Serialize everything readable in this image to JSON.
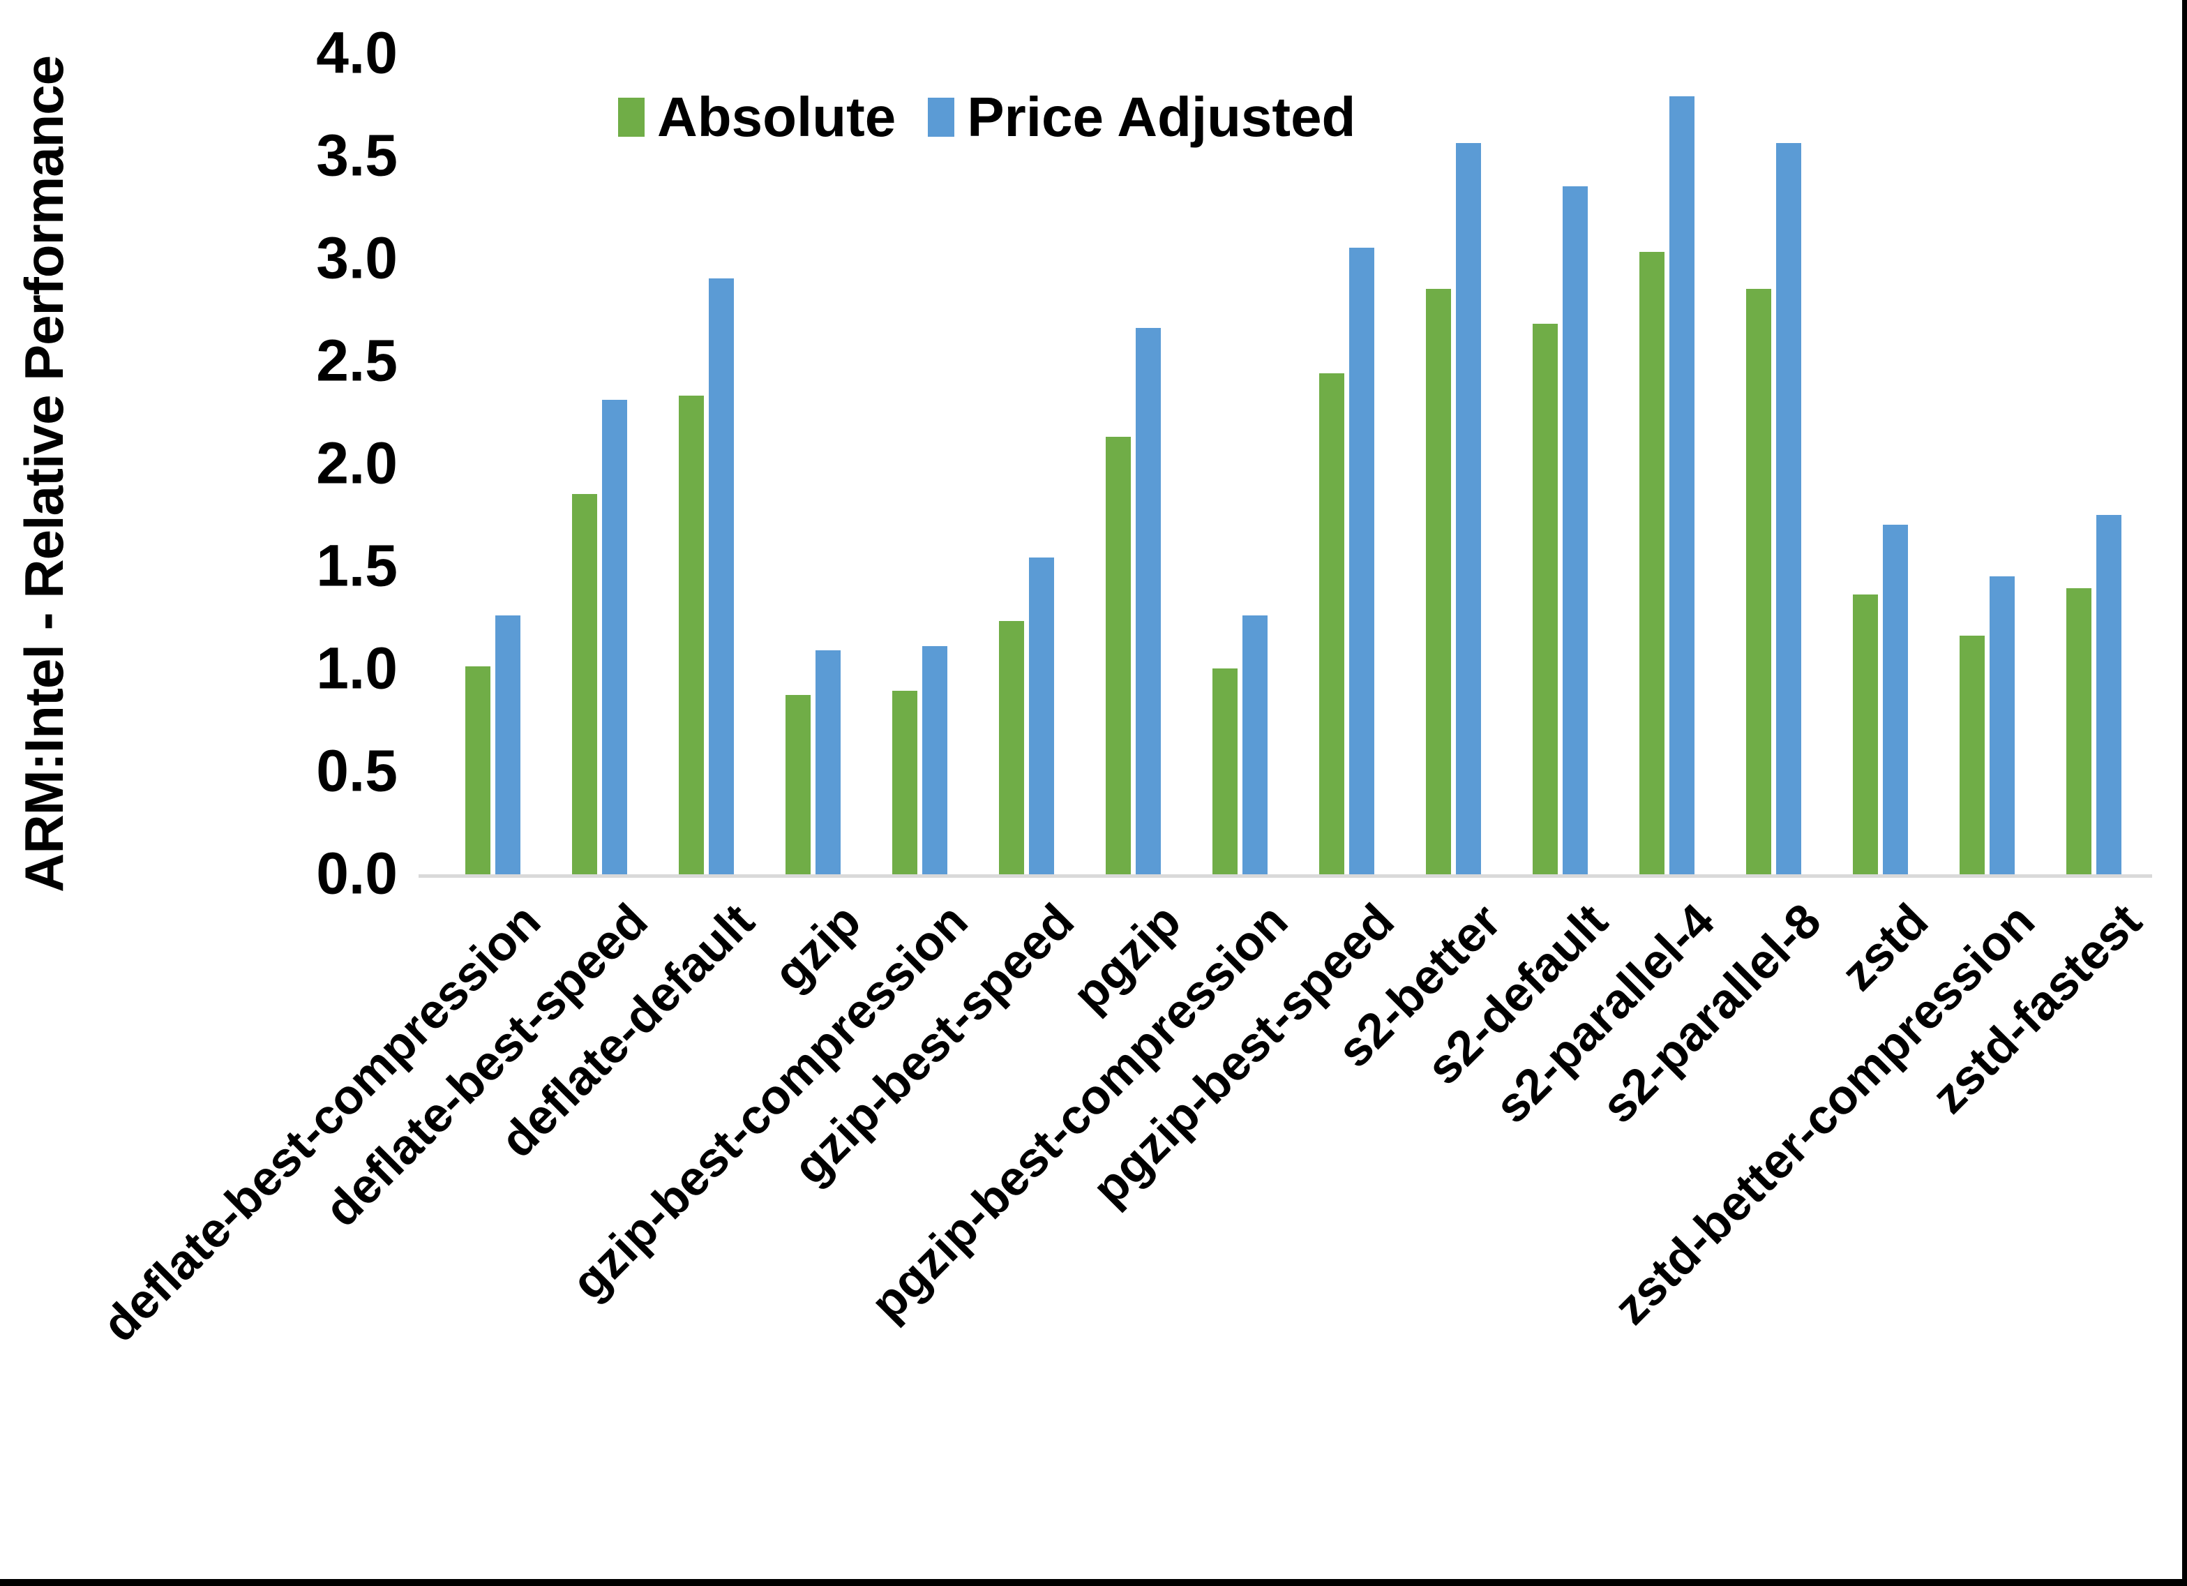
{
  "chart_data": {
    "type": "bar",
    "title": "",
    "xlabel": "",
    "ylabel": "ARM:Intel - Relative Performance",
    "ylim": [
      0.0,
      4.0
    ],
    "ytick_labels": [
      "0.0",
      "0.5",
      "1.0",
      "1.5",
      "2.0",
      "2.5",
      "3.0",
      "3.5",
      "4.0"
    ],
    "grid": false,
    "legend_position": "top-center",
    "categories": [
      "deflate-best-compression",
      "deflate-best-speed",
      "deflate-default",
      "gzip",
      "gzip-best-compression",
      "gzip-best-speed",
      "pgzip",
      "pgzip-best-compression",
      "pgzip-best-speed",
      "s2-better",
      "s2-default",
      "s2-parallel-4",
      "s2-parallel-8",
      "zstd",
      "zstd-better-compression",
      "zstd-fastest"
    ],
    "series": [
      {
        "name": "Absolute",
        "color": "#70AD47",
        "values": [
          1.02,
          1.86,
          2.34,
          0.88,
          0.9,
          1.24,
          2.14,
          1.01,
          2.45,
          2.86,
          2.69,
          3.04,
          2.86,
          1.37,
          1.17,
          1.4
        ]
      },
      {
        "name": "Price Adjusted",
        "color": "#5B9BD5",
        "values": [
          1.27,
          2.32,
          2.91,
          1.1,
          1.12,
          1.55,
          2.67,
          1.27,
          3.06,
          3.57,
          3.36,
          3.8,
          3.57,
          1.71,
          1.46,
          1.76
        ]
      }
    ],
    "axis_line_color": "#D9D9D9",
    "frame_border_color": "#000000"
  }
}
